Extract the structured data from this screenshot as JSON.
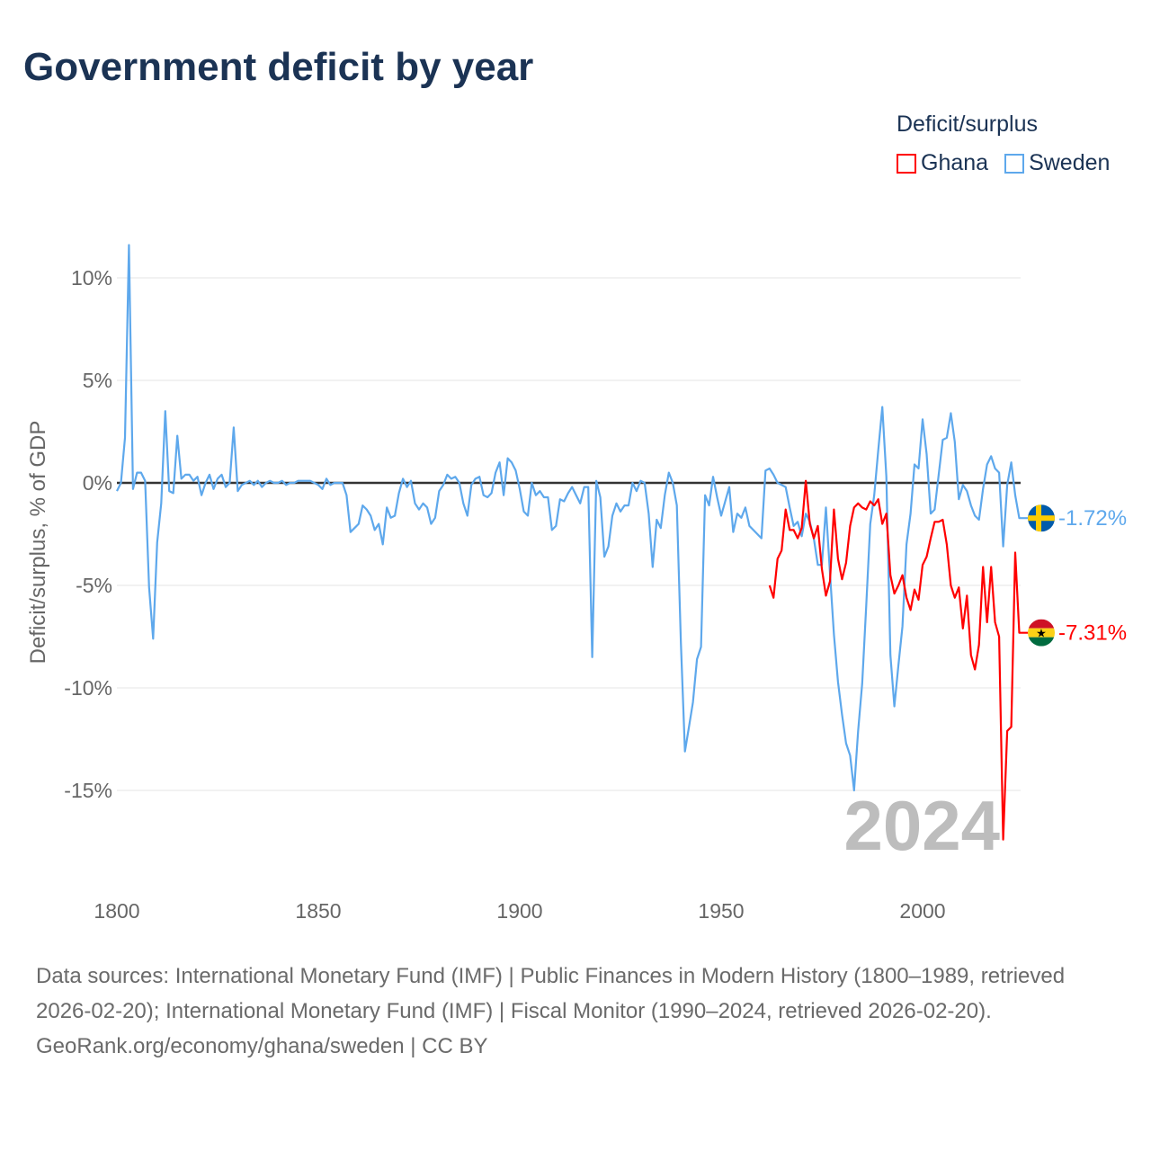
{
  "title": "Government deficit by year",
  "legend": {
    "title": "Deficit/surplus",
    "items": [
      {
        "name": "Ghana",
        "color": "#ff0000"
      },
      {
        "name": "Sweden",
        "color": "#5ea8ec"
      }
    ]
  },
  "footer": {
    "sources": "Data sources: International Monetary Fund (IMF) | Public Finances in Modern History (1800–1989, retrieved 2026-02-20); International Monetary Fund (IMF) | Fiscal Monitor (1990–2024, retrieved 2026-02-20).",
    "credit": "GeoRank.org/economy/ghana/sweden | CC BY"
  },
  "chart_data": {
    "type": "line",
    "title": "Government deficit by year",
    "xlabel": "",
    "ylabel": "Deficit/surplus, % of GDP",
    "xlim": [
      1800,
      2024
    ],
    "ylim": [
      -17.5,
      11.8
    ],
    "x_ticks": [
      "1800",
      "1850",
      "1900",
      "1950",
      "2000"
    ],
    "x_tick_values": [
      1800,
      1850,
      1900,
      1950,
      2000
    ],
    "y_ticks": [
      "10%",
      "5%",
      "0%",
      "-5%",
      "-10%",
      "-15%"
    ],
    "y_tick_values": [
      10,
      5,
      0,
      -5,
      -10,
      -15
    ],
    "grid": true,
    "legend_position": "top-right",
    "year_watermark": "2024",
    "series": [
      {
        "name": "Sweden",
        "color": "#5ea8ec",
        "start_year": 1800,
        "end_label": "-1.72%",
        "values": [
          -0.4,
          0,
          2.2,
          11.6,
          -0.3,
          0.5,
          0.5,
          0.1,
          -5.1,
          -7.6,
          -2.9,
          -1.0,
          3.5,
          -0.4,
          -0.5,
          2.3,
          0.2,
          0.4,
          0.4,
          0.1,
          0.3,
          -0.6,
          0,
          0.4,
          -0.3,
          0.2,
          0.4,
          -0.2,
          0,
          2.7,
          -0.4,
          -0.1,
          0,
          0.1,
          -0.1,
          0.1,
          -0.2,
          0,
          0.1,
          0,
          0,
          0.1,
          -0.1,
          0,
          0,
          0.1,
          0.1,
          0.1,
          0.1,
          0,
          -0.1,
          -0.3,
          0.2,
          -0.1,
          0,
          0,
          0,
          -0.6,
          -2.4,
          -2.2,
          -2.0,
          -1.1,
          -1.3,
          -1.6,
          -2.3,
          -2.0,
          -3.0,
          -1.2,
          -1.7,
          -1.6,
          -0.5,
          0.2,
          -0.2,
          0.1,
          -1.0,
          -1.3,
          -1.0,
          -1.2,
          -2.0,
          -1.7,
          -0.4,
          -0.1,
          0.4,
          0.2,
          0.3,
          0,
          -1.0,
          -1.6,
          -0.1,
          0.2,
          0.3,
          -0.6,
          -0.7,
          -0.5,
          0.5,
          1.0,
          -0.6,
          1.2,
          1.0,
          0.6,
          -0.3,
          -1.4,
          -1.6,
          0,
          -0.6,
          -0.4,
          -0.7,
          -0.7,
          -2.3,
          -2.1,
          -0.8,
          -0.9,
          -0.5,
          -0.2,
          -0.6,
          -1.0,
          -0.2,
          -0.2,
          -8.5,
          0.1,
          -0.7,
          -3.6,
          -3.1,
          -1.6,
          -1.0,
          -1.4,
          -1.1,
          -1.1,
          0,
          -0.4,
          0.1,
          0,
          -1.5,
          -4.1,
          -1.8,
          -2.2,
          -0.6,
          0.5,
          0,
          -1.1,
          -7.8,
          -13.1,
          -11.9,
          -10.7,
          -8.6,
          -8.0,
          -0.6,
          -1.1,
          0.3,
          -0.7,
          -1.6,
          -0.9,
          -0.2,
          -2.4,
          -1.5,
          -1.7,
          -1.2,
          -2.1,
          -2.3,
          -2.5,
          -2.7,
          0.6,
          0.7,
          0.4,
          0,
          -0.1,
          -0.2,
          -1.2,
          -2.1,
          -1.9,
          -2.6,
          -1.5,
          -1.9,
          -2.7,
          -4.0,
          -4.0,
          -1.2,
          -4.4,
          -7.4,
          -9.7,
          -11.3,
          -12.7,
          -13.3,
          -15.0,
          -12.1,
          -9.8,
          -6.0,
          -2.0,
          -0.6,
          1.6,
          3.7,
          0.3,
          -8.4,
          -10.9,
          -8.9,
          -7.0,
          -3.0,
          -1.5,
          0.9,
          0.7,
          3.1,
          1.4,
          -1.5,
          -1.3,
          0.4,
          2.1,
          2.2,
          3.4,
          2.0,
          -0.8,
          -0.1,
          -0.4,
          -1.1,
          -1.6,
          -1.8,
          -0.3,
          0.9,
          1.3,
          0.7,
          0.5,
          -3.1,
          -0.1,
          1.0,
          -0.6,
          -1.72
        ]
      },
      {
        "name": "Ghana",
        "color": "#ff0000",
        "start_year": 1962,
        "end_label": "-7.31%",
        "values": [
          -5.0,
          -5.6,
          -3.7,
          -3.3,
          -1.3,
          -2.3,
          -2.3,
          -2.7,
          -2.2,
          0.1,
          -2.0,
          -2.7,
          -2.1,
          -4.2,
          -5.5,
          -4.8,
          -1.3,
          -3.7,
          -4.7,
          -3.9,
          -2.1,
          -1.2,
          -1.0,
          -1.2,
          -1.3,
          -0.9,
          -1.1,
          -0.8,
          -2.0,
          -1.5,
          -4.5,
          -5.4,
          -5.0,
          -4.5,
          -5.6,
          -6.2,
          -5.2,
          -5.7,
          -4.0,
          -3.6,
          -2.7,
          -1.9,
          -1.9,
          -1.8,
          -3.0,
          -5.0,
          -5.6,
          -5.1,
          -7.1,
          -5.5,
          -8.4,
          -9.1,
          -7.9,
          -4.1,
          -6.8,
          -4.1,
          -6.8,
          -7.5,
          -17.4,
          -12.1,
          -11.9,
          -3.4,
          -7.31
        ]
      }
    ]
  }
}
